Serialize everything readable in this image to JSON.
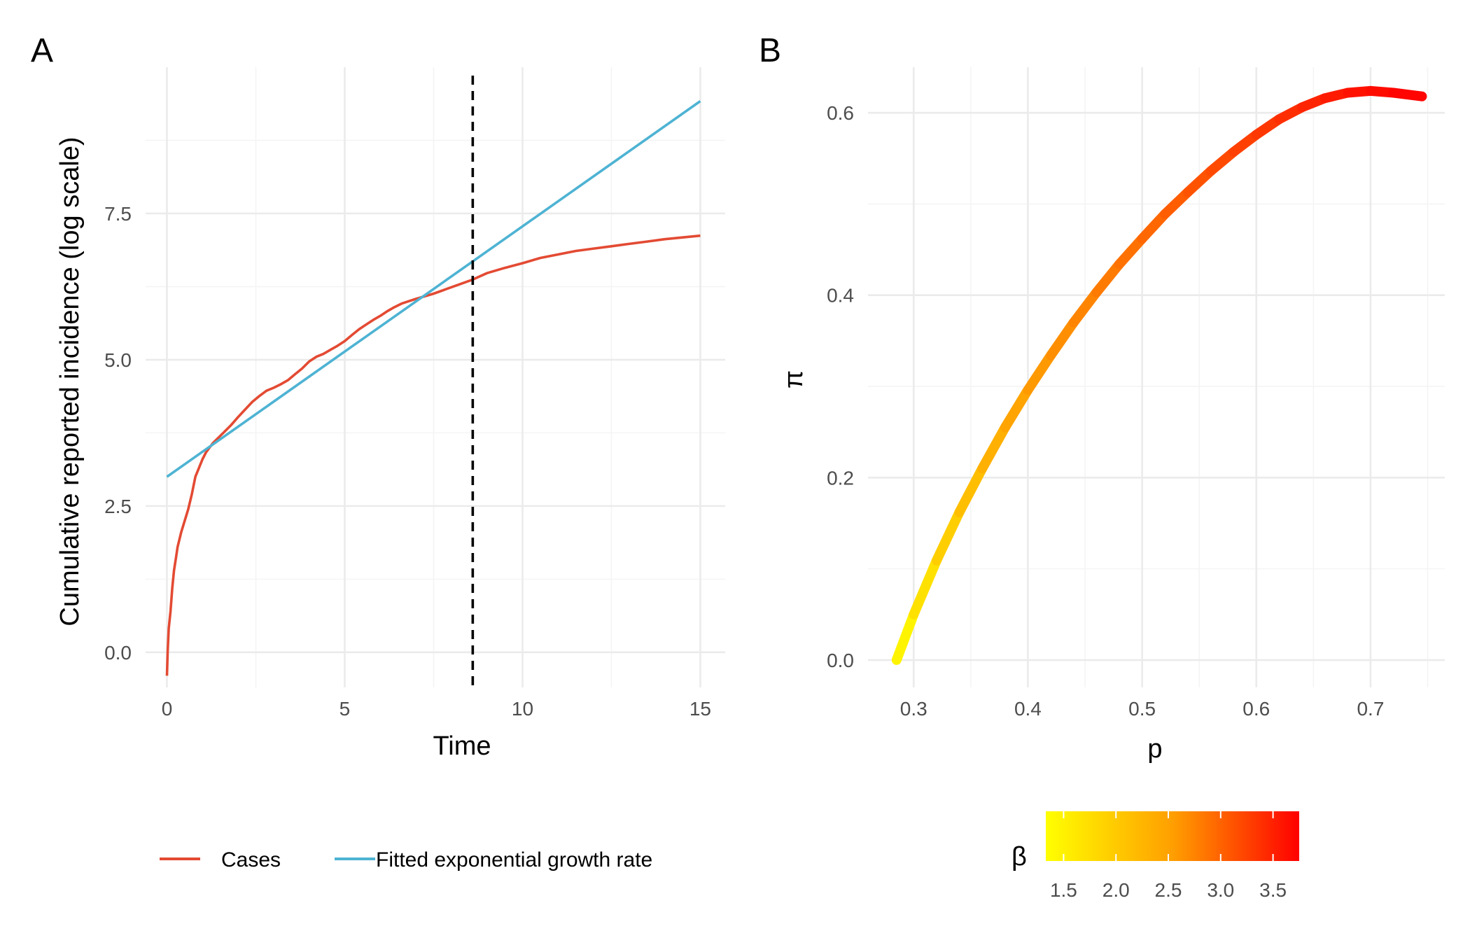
{
  "chart_data": [
    {
      "type": "line",
      "panel_label": "A",
      "xlabel": "Time",
      "ylabel": "Cumulative reported incidence (log scale)",
      "xlim": [
        -0.6,
        15.7
      ],
      "ylim": [
        -0.6,
        10.0
      ],
      "x_ticks": [
        0,
        5,
        10,
        15
      ],
      "x_tick_labels": [
        "0",
        "5",
        "10",
        "15"
      ],
      "y_ticks": [
        0,
        2.5,
        5,
        7.5
      ],
      "y_tick_labels": [
        "0.0",
        "2.5",
        "5.0",
        "7.5"
      ],
      "vline": {
        "x": 8.6,
        "style": "dashed",
        "color": "#000000"
      },
      "series": [
        {
          "name": "Cases",
          "color": "#e34a33",
          "x": [
            0,
            0.02,
            0.05,
            0.1,
            0.15,
            0.2,
            0.25,
            0.3,
            0.4,
            0.5,
            0.6,
            0.7,
            0.8,
            0.9,
            1.0,
            1.1,
            1.2,
            1.3,
            1.4,
            1.5,
            1.6,
            1.7,
            1.8,
            1.9,
            2.0,
            2.2,
            2.4,
            2.6,
            2.8,
            3.0,
            3.2,
            3.4,
            3.6,
            3.8,
            4.0,
            4.2,
            4.4,
            4.6,
            4.8,
            5.0,
            5.2,
            5.4,
            5.6,
            5.8,
            6.0,
            6.2,
            6.4,
            6.6,
            6.8,
            7.0,
            7.5,
            8.0,
            8.6,
            9.0,
            9.5,
            10.0,
            10.5,
            11.0,
            11.5,
            12.0,
            12.5,
            13.0,
            13.5,
            14.0,
            14.5,
            15.0
          ],
          "values": [
            -0.4,
            0.0,
            0.4,
            0.7,
            1.1,
            1.4,
            1.6,
            1.8,
            2.05,
            2.25,
            2.45,
            2.7,
            3.0,
            3.15,
            3.3,
            3.42,
            3.5,
            3.58,
            3.64,
            3.7,
            3.76,
            3.82,
            3.88,
            3.95,
            4.02,
            4.15,
            4.28,
            4.38,
            4.47,
            4.52,
            4.58,
            4.65,
            4.75,
            4.85,
            4.97,
            5.05,
            5.1,
            5.17,
            5.24,
            5.32,
            5.42,
            5.52,
            5.6,
            5.68,
            5.75,
            5.83,
            5.9,
            5.96,
            6.0,
            6.04,
            6.13,
            6.24,
            6.37,
            6.48,
            6.57,
            6.65,
            6.74,
            6.8,
            6.86,
            6.9,
            6.94,
            6.98,
            7.02,
            7.06,
            7.09,
            7.12
          ]
        },
        {
          "name": "Fitted exponential growth rate",
          "color": "#4eb3d3",
          "x": [
            0,
            15
          ],
          "values": [
            3.0,
            9.42
          ]
        }
      ],
      "legend_position": "bottom"
    },
    {
      "type": "line",
      "panel_label": "B",
      "xlabel": "p",
      "ylabel": "π",
      "xlim": [
        0.26,
        0.765
      ],
      "ylim": [
        -0.03,
        0.65
      ],
      "x_ticks": [
        0.3,
        0.4,
        0.5,
        0.6,
        0.7
      ],
      "x_tick_labels": [
        "0.3",
        "0.4",
        "0.5",
        "0.6",
        "0.7"
      ],
      "y_ticks": [
        0.0,
        0.2,
        0.4,
        0.6
      ],
      "y_tick_labels": [
        "0.0",
        "0.2",
        "0.4",
        "0.6"
      ],
      "color_variable": "β",
      "color_range": [
        1.33,
        3.75
      ],
      "color_low": "#ffff00",
      "color_high": "#ff0000",
      "series": [
        {
          "name": "curve",
          "x": [
            0.285,
            0.3,
            0.32,
            0.34,
            0.36,
            0.38,
            0.4,
            0.42,
            0.44,
            0.46,
            0.48,
            0.5,
            0.52,
            0.54,
            0.56,
            0.58,
            0.6,
            0.62,
            0.64,
            0.66,
            0.68,
            0.7,
            0.72,
            0.745
          ],
          "values": [
            0.0,
            0.05,
            0.109,
            0.162,
            0.21,
            0.255,
            0.296,
            0.334,
            0.37,
            0.403,
            0.434,
            0.462,
            0.489,
            0.513,
            0.536,
            0.557,
            0.576,
            0.593,
            0.606,
            0.616,
            0.622,
            0.624,
            0.622,
            0.618
          ],
          "beta": [
            1.33,
            1.45,
            1.6,
            1.75,
            1.88,
            2.0,
            2.1,
            2.2,
            2.3,
            2.4,
            2.5,
            2.6,
            2.7,
            2.8,
            2.9,
            3.0,
            3.1,
            3.2,
            3.3,
            3.4,
            3.5,
            3.58,
            3.66,
            3.75
          ]
        }
      ],
      "colorbar": {
        "title": "β",
        "ticks": [
          1.5,
          2.0,
          2.5,
          3.0,
          3.5
        ],
        "tick_labels": [
          "1.5",
          "2.0",
          "2.5",
          "3.0",
          "3.5"
        ]
      }
    }
  ]
}
